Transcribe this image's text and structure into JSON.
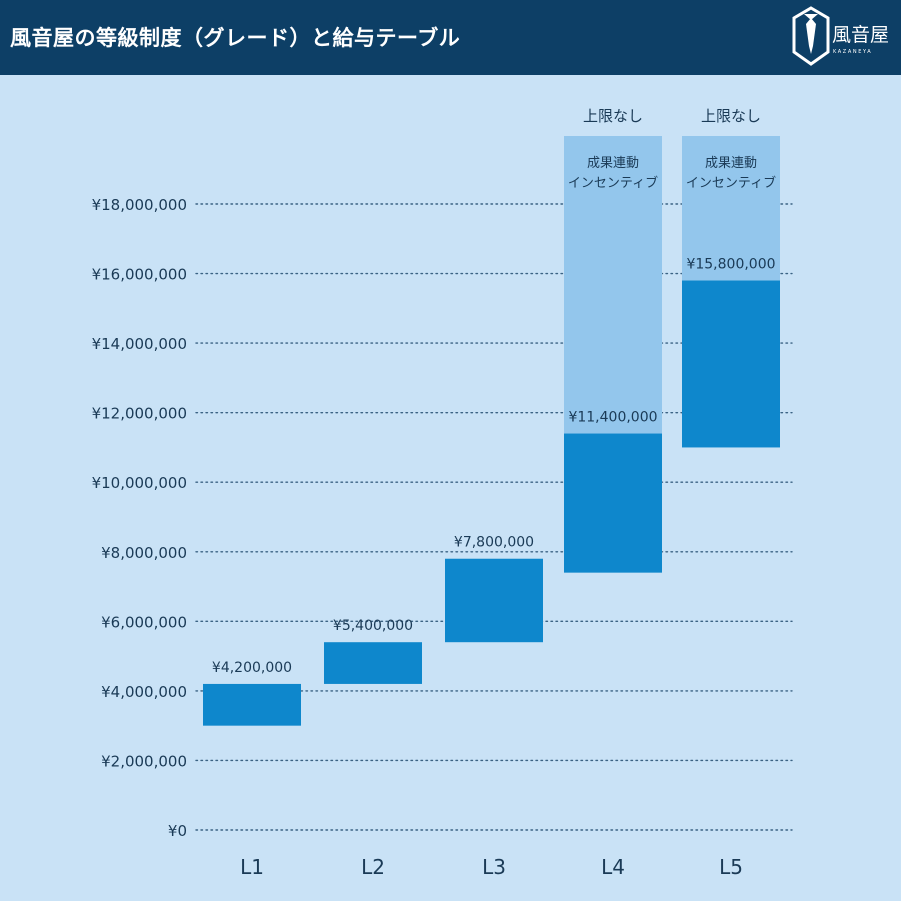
{
  "header": {
    "title": "風音屋の等級制度（グレード）と給与テーブル",
    "logo_text": "風音屋",
    "logo_sub": "KAZANEYA"
  },
  "colors": {
    "header_bg": "#0d3f66",
    "background": "#c9e2f6",
    "base_bar": "#0e87cc",
    "incentive_bar": "#93c6ec",
    "text": "#1a3a56",
    "grid": "#3b6384"
  },
  "chart_data": {
    "type": "bar",
    "subtype": "floating-range",
    "categories": [
      "L1",
      "L2",
      "L3",
      "L4",
      "L5"
    ],
    "ylim": [
      0,
      18000000
    ],
    "yticks": [
      {
        "value": 0,
        "label": "¥0"
      },
      {
        "value": 2000000,
        "label": "¥2,000,000"
      },
      {
        "value": 4000000,
        "label": "¥4,000,000"
      },
      {
        "value": 6000000,
        "label": "¥6,000,000"
      },
      {
        "value": 8000000,
        "label": "¥8,000,000"
      },
      {
        "value": 10000000,
        "label": "¥10,000,000"
      },
      {
        "value": 12000000,
        "label": "¥12,000,000"
      },
      {
        "value": 14000000,
        "label": "¥14,000,000"
      },
      {
        "value": 16000000,
        "label": "¥16,000,000"
      },
      {
        "value": 18000000,
        "label": "¥18,000,000"
      }
    ],
    "grid": true,
    "base_ranges": [
      {
        "grade": "L1",
        "min": 3000000,
        "max": 4200000,
        "label": "¥4,200,000"
      },
      {
        "grade": "L2",
        "min": 4200000,
        "max": 5400000,
        "label": "¥5,400,000"
      },
      {
        "grade": "L3",
        "min": 5400000,
        "max": 7800000,
        "label": "¥7,800,000"
      },
      {
        "grade": "L4",
        "min": 7400000,
        "max": 11400000,
        "label": "¥11,400,000"
      },
      {
        "grade": "L5",
        "min": 11000000,
        "max": 15800000,
        "label": "¥15,800,000"
      }
    ],
    "incentive": [
      {
        "grade": "L4",
        "label": "成果連動\nインセンティブ",
        "cap_label": "上限なし"
      },
      {
        "grade": "L5",
        "label": "成果連動\nインセンティブ",
        "cap_label": "上限なし"
      }
    ]
  }
}
